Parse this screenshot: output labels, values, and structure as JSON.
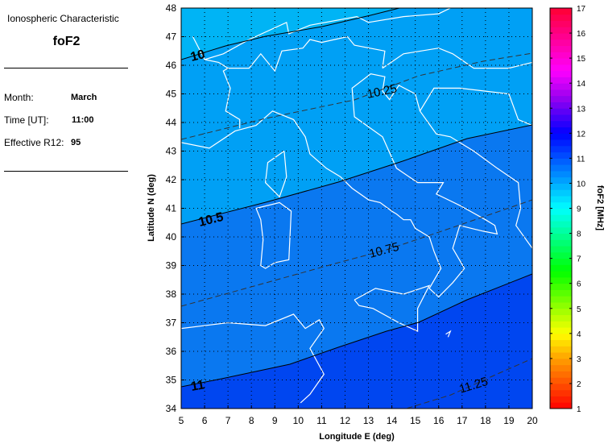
{
  "side_panel": {
    "heading": "Ionospheric Characteristic",
    "parameter": "foF2",
    "fields": [
      {
        "label": "Month:",
        "value": "March"
      },
      {
        "label": "Time [UT]:",
        "value": "11:00"
      },
      {
        "label": "Effective R12:",
        "value": "95"
      }
    ]
  },
  "map": {
    "xlabel": "Longitude E (deg)",
    "ylabel": "Latitude N (deg)",
    "lon_range": [
      5,
      20
    ],
    "lat_range": [
      34,
      48
    ],
    "lon_ticks": [
      "5",
      "6",
      "7",
      "8",
      "9",
      "10",
      "11",
      "12",
      "13",
      "14",
      "15",
      "16",
      "17",
      "18",
      "19",
      "20"
    ],
    "lat_ticks": [
      "34",
      "35",
      "36",
      "37",
      "38",
      "39",
      "40",
      "41",
      "42",
      "43",
      "44",
      "45",
      "46",
      "47",
      "48"
    ],
    "grid": "dotted",
    "coastline_color": "#ffffff",
    "zone_colors": [
      "#00b4f5",
      "#00a0f5",
      "#0a78f0",
      "#0046f0"
    ],
    "contours": [
      {
        "level": "10",
        "style": "solid"
      },
      {
        "level": "10.25",
        "style": "dashed"
      },
      {
        "level": "10.5",
        "style": "solid"
      },
      {
        "level": "10.75",
        "style": "dashed"
      },
      {
        "level": "11",
        "style": "solid"
      },
      {
        "level": "11.25",
        "style": "dashed"
      }
    ]
  },
  "colorbar": {
    "label": "foF2 [MHz]",
    "range": [
      1,
      17
    ],
    "ticks": [
      "1",
      "2",
      "3",
      "4",
      "5",
      "6",
      "7",
      "8",
      "9",
      "10",
      "11",
      "12",
      "13",
      "14",
      "15",
      "16",
      "17"
    ]
  }
}
